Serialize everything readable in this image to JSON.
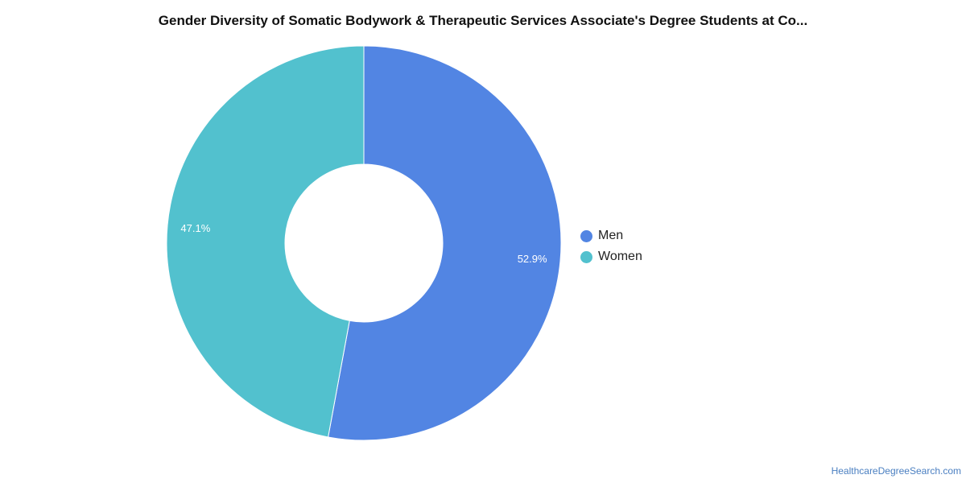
{
  "title": "Gender Diversity of Somatic Bodywork & Therapeutic Services Associate's Degree Students at Co...",
  "source_link": "HealthcareDegreeSearch.com",
  "chart_data": {
    "type": "pie",
    "donut": true,
    "title": "Gender Diversity of Somatic Bodywork & Therapeutic Services Associate's Degree Students at Co...",
    "legend_position": "right",
    "slices": [
      {
        "name": "Men",
        "value": 52.9,
        "label": "52.9%",
        "color": "#5285e3"
      },
      {
        "name": "Women",
        "value": 47.1,
        "label": "47.1%",
        "color": "#52c1ce"
      }
    ]
  }
}
